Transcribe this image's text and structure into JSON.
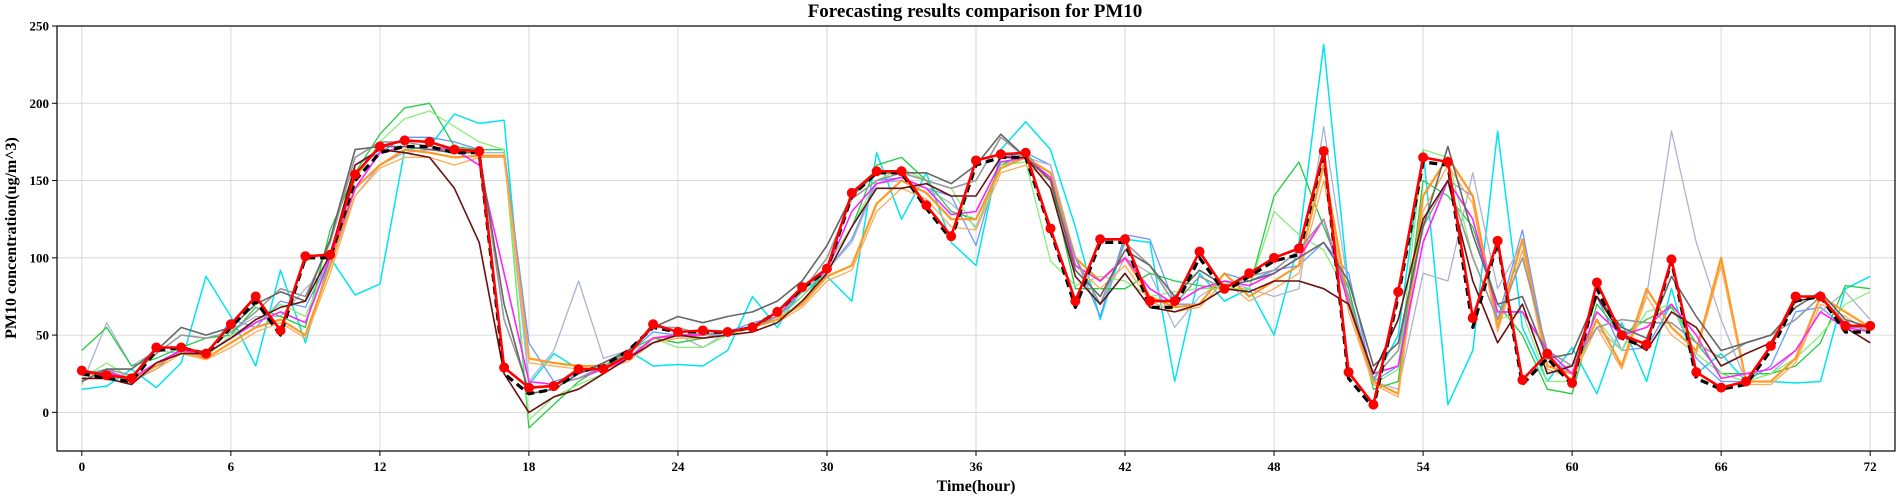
{
  "chart_data": {
    "type": "line",
    "title": "Forecasting results comparison for PM10",
    "xlabel": "Time(hour)",
    "ylabel": "PM10 concentration(ug/m^3)",
    "xlim": [
      -1,
      73
    ],
    "ylim": [
      -25,
      250
    ],
    "xticks": [
      0,
      6,
      12,
      18,
      24,
      30,
      36,
      42,
      48,
      54,
      60,
      66,
      72
    ],
    "yticks": [
      0,
      50,
      100,
      150,
      200,
      250
    ],
    "grid": true,
    "legend": "none",
    "x": [
      0,
      1,
      2,
      3,
      4,
      5,
      6,
      7,
      8,
      9,
      10,
      11,
      12,
      13,
      14,
      15,
      16,
      17,
      18,
      19,
      20,
      21,
      22,
      23,
      24,
      25,
      26,
      27,
      28,
      29,
      30,
      31,
      32,
      33,
      34,
      35,
      36,
      37,
      38,
      39,
      40,
      41,
      42,
      43,
      44,
      45,
      46,
      47,
      48,
      49,
      50,
      51,
      52,
      53,
      54,
      55,
      56,
      57,
      58,
      59,
      60,
      61,
      62,
      63,
      64,
      65,
      66,
      67,
      68,
      69,
      70,
      71,
      72
    ],
    "series": [
      {
        "color": "#00e5ee",
        "width": 1.5,
        "values": [
          15,
          17,
          28,
          16,
          32,
          88,
          62,
          30,
          92,
          45,
          100,
          76,
          83,
          170,
          172,
          193,
          187,
          189,
          18,
          38,
          28,
          29,
          40,
          30,
          31,
          30,
          40,
          75,
          55,
          80,
          88,
          72,
          168,
          125,
          155,
          110,
          95,
          170,
          188,
          170,
          120,
          60,
          112,
          110,
          20,
          90,
          72,
          80,
          50,
          110,
          238,
          80,
          20,
          50,
          170,
          5,
          40,
          182,
          55,
          20,
          42,
          12,
          58,
          20,
          80,
          25,
          38,
          20,
          20,
          19,
          20,
          80,
          88
        ]
      },
      {
        "color": "#6699ff",
        "width": 1.3,
        "values": [
          24,
          28,
          20,
          28,
          42,
          36,
          60,
          55,
          72,
          68,
          100,
          160,
          168,
          178,
          178,
          175,
          170,
          170,
          45,
          20,
          25,
          30,
          38,
          52,
          50,
          48,
          52,
          58,
          62,
          75,
          92,
          112,
          150,
          152,
          145,
          140,
          108,
          165,
          168,
          160,
          100,
          62,
          115,
          112,
          70,
          70,
          90,
          85,
          92,
          95,
          110,
          90,
          20,
          30,
          125,
          150,
          140,
          60,
          118,
          35,
          25,
          75,
          40,
          42,
          70,
          35,
          20,
          20,
          30,
          65,
          68,
          55,
          55
        ]
      },
      {
        "color": "#aab4d0",
        "width": 1.3,
        "values": [
          18,
          58,
          30,
          40,
          38,
          40,
          52,
          62,
          62,
          80,
          95,
          140,
          160,
          168,
          170,
          172,
          168,
          168,
          20,
          40,
          85,
          35,
          40,
          45,
          50,
          42,
          52,
          55,
          60,
          70,
          92,
          110,
          148,
          150,
          145,
          135,
          120,
          160,
          165,
          160,
          100,
          70,
          100,
          90,
          55,
          75,
          85,
          80,
          75,
          80,
          185,
          80,
          20,
          15,
          90,
          85,
          155,
          80,
          110,
          30,
          30,
          55,
          40,
          75,
          182,
          110,
          60,
          20,
          25,
          40,
          65,
          78,
          60
        ]
      },
      {
        "color": "#22cc44",
        "width": 1.3,
        "values": [
          40,
          55,
          30,
          35,
          42,
          48,
          50,
          68,
          62,
          55,
          118,
          155,
          180,
          197,
          200,
          172,
          170,
          170,
          -10,
          5,
          20,
          30,
          40,
          48,
          45,
          48,
          50,
          55,
          60,
          70,
          95,
          120,
          160,
          165,
          150,
          130,
          125,
          160,
          168,
          150,
          80,
          80,
          80,
          90,
          85,
          82,
          80,
          80,
          140,
          162,
          120,
          80,
          15,
          20,
          150,
          140,
          120,
          70,
          50,
          15,
          12,
          70,
          50,
          60,
          68,
          45,
          25,
          25,
          25,
          30,
          45,
          82,
          80
        ]
      },
      {
        "color": "#88ee77",
        "width": 1.3,
        "values": [
          22,
          32,
          22,
          28,
          38,
          36,
          50,
          58,
          70,
          62,
          100,
          150,
          175,
          190,
          195,
          185,
          175,
          170,
          -5,
          10,
          18,
          25,
          35,
          48,
          42,
          42,
          50,
          55,
          60,
          75,
          95,
          120,
          150,
          158,
          150,
          145,
          118,
          160,
          162,
          98,
          82,
          88,
          85,
          75,
          78,
          80,
          80,
          80,
          130,
          115,
          105,
          75,
          18,
          28,
          170,
          165,
          100,
          60,
          65,
          20,
          20,
          60,
          40,
          65,
          70,
          38,
          25,
          20,
          25,
          35,
          50,
          70,
          78
        ]
      },
      {
        "color": "#ff9922",
        "width": 2.2,
        "values": [
          25,
          26,
          22,
          30,
          40,
          35,
          45,
          55,
          60,
          50,
          95,
          145,
          160,
          170,
          168,
          165,
          166,
          166,
          35,
          32,
          30,
          30,
          35,
          48,
          50,
          50,
          52,
          55,
          60,
          70,
          88,
          95,
          135,
          150,
          142,
          125,
          125,
          158,
          165,
          155,
          100,
          85,
          100,
          75,
          68,
          70,
          90,
          75,
          85,
          95,
          160,
          70,
          20,
          12,
          140,
          165,
          140,
          55,
          112,
          30,
          25,
          60,
          30,
          80,
          55,
          40,
          100,
          20,
          20,
          35,
          75,
          65,
          55
        ]
      },
      {
        "color": "#ffaa55",
        "width": 1.3,
        "values": [
          24,
          25,
          21,
          28,
          38,
          34,
          42,
          52,
          58,
          48,
          90,
          140,
          158,
          165,
          165,
          160,
          165,
          165,
          32,
          30,
          28,
          28,
          33,
          45,
          48,
          48,
          50,
          52,
          58,
          68,
          85,
          92,
          130,
          145,
          138,
          120,
          118,
          155,
          160,
          150,
          95,
          80,
          95,
          72,
          65,
          68,
          85,
          72,
          80,
          90,
          150,
          65,
          18,
          10,
          130,
          160,
          135,
          52,
          105,
          28,
          22,
          55,
          28,
          75,
          50,
          38,
          95,
          18,
          18,
          32,
          70,
          62,
          52
        ]
      },
      {
        "color": "#ff22ff",
        "width": 1.6,
        "values": [
          26,
          26,
          22,
          32,
          40,
          38,
          48,
          58,
          65,
          58,
          100,
          145,
          168,
          172,
          170,
          170,
          160,
          90,
          20,
          18,
          22,
          28,
          35,
          48,
          50,
          50,
          52,
          55,
          62,
          80,
          92,
          130,
          148,
          152,
          145,
          128,
          130,
          162,
          165,
          152,
          95,
          85,
          100,
          80,
          70,
          80,
          85,
          82,
          90,
          100,
          125,
          70,
          25,
          30,
          110,
          150,
          125,
          65,
          65,
          40,
          25,
          65,
          50,
          55,
          70,
          50,
          22,
          25,
          28,
          40,
          65,
          55,
          52
        ]
      },
      {
        "color": "#999999",
        "width": 1.6,
        "values": [
          24,
          28,
          24,
          38,
          50,
          48,
          52,
          65,
          80,
          75,
          110,
          165,
          175,
          175,
          172,
          170,
          170,
          60,
          15,
          18,
          22,
          30,
          38,
          55,
          55,
          50,
          52,
          55,
          62,
          78,
          100,
          138,
          150,
          155,
          150,
          145,
          150,
          178,
          165,
          150,
          100,
          70,
          110,
          95,
          70,
          88,
          80,
          88,
          92,
          105,
          125,
          75,
          22,
          40,
          120,
          150,
          100,
          60,
          100,
          40,
          30,
          55,
          60,
          58,
          58,
          45,
          35,
          45,
          50,
          60,
          75,
          58,
          52
        ]
      },
      {
        "color": "#666666",
        "width": 1.6,
        "values": [
          20,
          28,
          28,
          40,
          55,
          50,
          55,
          70,
          78,
          72,
          112,
          170,
          172,
          172,
          170,
          168,
          168,
          70,
          12,
          15,
          25,
          32,
          40,
          55,
          62,
          58,
          62,
          65,
          72,
          85,
          108,
          140,
          155,
          155,
          155,
          148,
          160,
          180,
          165,
          150,
          92,
          75,
          105,
          95,
          75,
          92,
          82,
          85,
          90,
          100,
          110,
          85,
          30,
          45,
          120,
          172,
          115,
          70,
          75,
          35,
          38,
          75,
          55,
          48,
          88,
          62,
          40,
          45,
          50,
          68,
          78,
          60,
          55
        ]
      },
      {
        "color": "#6b0f0f",
        "width": 1.6,
        "values": [
          22,
          22,
          18,
          32,
          38,
          38,
          48,
          60,
          68,
          72,
          102,
          160,
          170,
          168,
          165,
          145,
          110,
          25,
          0,
          10,
          15,
          25,
          35,
          45,
          50,
          48,
          50,
          52,
          58,
          72,
          90,
          120,
          145,
          145,
          148,
          140,
          140,
          165,
          165,
          145,
          88,
          70,
          90,
          68,
          65,
          70,
          80,
          78,
          85,
          85,
          80,
          70,
          25,
          60,
          125,
          150,
          85,
          45,
          70,
          25,
          30,
          75,
          50,
          40,
          65,
          55,
          30,
          38,
          45,
          72,
          75,
          55,
          45
        ]
      },
      {
        "color": "#000000",
        "width": 3.2,
        "dash": "8,5",
        "values": [
          25,
          22,
          20,
          40,
          42,
          38,
          55,
          72,
          50,
          100,
          100,
          150,
          168,
          172,
          172,
          168,
          168,
          25,
          12,
          15,
          26,
          30,
          40,
          55,
          52,
          52,
          52,
          55,
          65,
          80,
          92,
          140,
          155,
          155,
          132,
          112,
          160,
          165,
          165,
          118,
          68,
          110,
          110,
          68,
          68,
          100,
          78,
          88,
          98,
          102,
          168,
          22,
          3,
          75,
          162,
          160,
          55,
          110,
          18,
          35,
          18,
          80,
          48,
          42,
          98,
          22,
          15,
          18,
          40,
          72,
          75,
          52,
          52
        ]
      },
      {
        "color": "#ff0000",
        "width": 2.6,
        "marker": true,
        "values": [
          27,
          24,
          22,
          42,
          42,
          38,
          57,
          75,
          53,
          101,
          102,
          154,
          172,
          176,
          175,
          170,
          169,
          29,
          16,
          17,
          28,
          28,
          37,
          57,
          52,
          53,
          52,
          55,
          65,
          81,
          93,
          142,
          156,
          156,
          134,
          114,
          163,
          167,
          168,
          119,
          72,
          112,
          112,
          72,
          72,
          104,
          80,
          90,
          100,
          106,
          169,
          26,
          5,
          78,
          165,
          162,
          61,
          111,
          21,
          38,
          19,
          84,
          50,
          44,
          99,
          26,
          16,
          20,
          43,
          75,
          75,
          56,
          56
        ]
      }
    ]
  }
}
